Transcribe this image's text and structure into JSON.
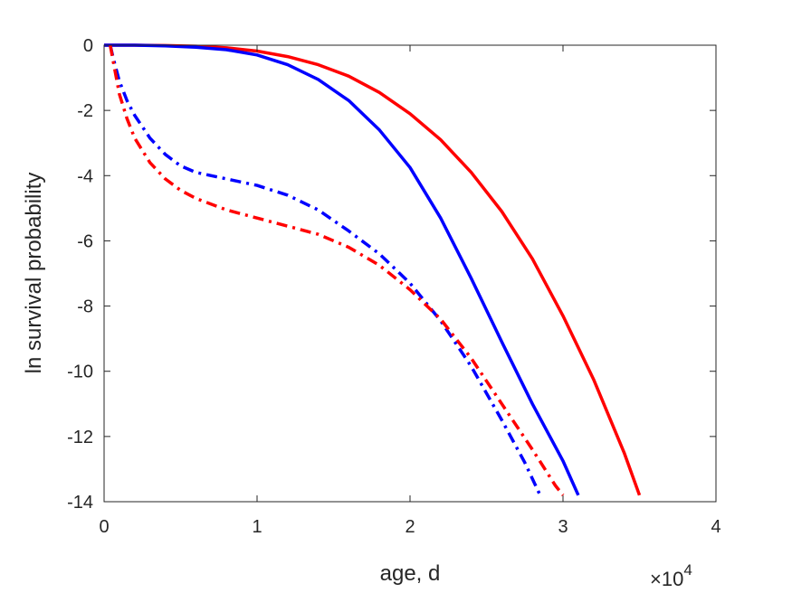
{
  "chart_data": {
    "type": "line",
    "title": "",
    "xlabel": "age, d",
    "ylabel": "ln survival probability",
    "x_exponent_label": "×10",
    "x_exponent_power": "4",
    "xlim": [
      0,
      40000
    ],
    "ylim": [
      -14,
      0
    ],
    "x_tick_values": [
      0,
      10000,
      20000,
      30000,
      40000
    ],
    "x_tick_labels": [
      "0",
      "1",
      "2",
      "3",
      "4"
    ],
    "y_tick_values": [
      0,
      -2,
      -4,
      -6,
      -8,
      -10,
      -12,
      -14
    ],
    "y_tick_labels": [
      "0",
      "-2",
      "-4",
      "-6",
      "-8",
      "-10",
      "-12",
      "-14"
    ],
    "grid": false,
    "legend": "none",
    "series": [
      {
        "color": "#ff0000",
        "style": "solid",
        "points": [
          [
            0,
            0
          ],
          [
            2000,
            0
          ],
          [
            4000,
            -0.01
          ],
          [
            6000,
            -0.03
          ],
          [
            8000,
            -0.08
          ],
          [
            10000,
            -0.18
          ],
          [
            12000,
            -0.35
          ],
          [
            14000,
            -0.6
          ],
          [
            16000,
            -0.95
          ],
          [
            18000,
            -1.45
          ],
          [
            20000,
            -2.1
          ],
          [
            22000,
            -2.9
          ],
          [
            24000,
            -3.9
          ],
          [
            26000,
            -5.1
          ],
          [
            28000,
            -6.55
          ],
          [
            30000,
            -8.3
          ],
          [
            32000,
            -10.25
          ],
          [
            34000,
            -12.5
          ],
          [
            35000,
            -13.8
          ]
        ]
      },
      {
        "color": "#0000ff",
        "style": "solid",
        "points": [
          [
            0,
            0
          ],
          [
            2000,
            0
          ],
          [
            4000,
            -0.02
          ],
          [
            6000,
            -0.06
          ],
          [
            8000,
            -0.14
          ],
          [
            10000,
            -0.3
          ],
          [
            12000,
            -0.6
          ],
          [
            14000,
            -1.05
          ],
          [
            16000,
            -1.7
          ],
          [
            18000,
            -2.6
          ],
          [
            20000,
            -3.75
          ],
          [
            22000,
            -5.3
          ],
          [
            24000,
            -7.15
          ],
          [
            26000,
            -9.1
          ],
          [
            28000,
            -11.0
          ],
          [
            30000,
            -12.75
          ],
          [
            31000,
            -13.8
          ]
        ]
      },
      {
        "color": "#0000ff",
        "style": "dashdot",
        "points": [
          [
            400,
            0
          ],
          [
            600,
            -0.4
          ],
          [
            1000,
            -1.1
          ],
          [
            1500,
            -1.7
          ],
          [
            2000,
            -2.15
          ],
          [
            3000,
            -2.85
          ],
          [
            4000,
            -3.35
          ],
          [
            5000,
            -3.7
          ],
          [
            6000,
            -3.9
          ],
          [
            8000,
            -4.1
          ],
          [
            10000,
            -4.3
          ],
          [
            12000,
            -4.6
          ],
          [
            14000,
            -5.05
          ],
          [
            16000,
            -5.7
          ],
          [
            18000,
            -6.4
          ],
          [
            20000,
            -7.3
          ],
          [
            22000,
            -8.45
          ],
          [
            24000,
            -9.85
          ],
          [
            26000,
            -11.5
          ],
          [
            27500,
            -12.8
          ],
          [
            28500,
            -13.8
          ]
        ]
      },
      {
        "color": "#ff0000",
        "style": "dashdot",
        "points": [
          [
            400,
            0
          ],
          [
            600,
            -0.5
          ],
          [
            1000,
            -1.5
          ],
          [
            1500,
            -2.25
          ],
          [
            2000,
            -2.85
          ],
          [
            3000,
            -3.6
          ],
          [
            4000,
            -4.1
          ],
          [
            5000,
            -4.45
          ],
          [
            6000,
            -4.7
          ],
          [
            8000,
            -5.05
          ],
          [
            10000,
            -5.3
          ],
          [
            12000,
            -5.55
          ],
          [
            14000,
            -5.8
          ],
          [
            16000,
            -6.2
          ],
          [
            18000,
            -6.75
          ],
          [
            20000,
            -7.5
          ],
          [
            22000,
            -8.4
          ],
          [
            24000,
            -9.6
          ],
          [
            26000,
            -11.0
          ],
          [
            28000,
            -12.4
          ],
          [
            29500,
            -13.5
          ],
          [
            30000,
            -13.8
          ]
        ]
      }
    ]
  }
}
